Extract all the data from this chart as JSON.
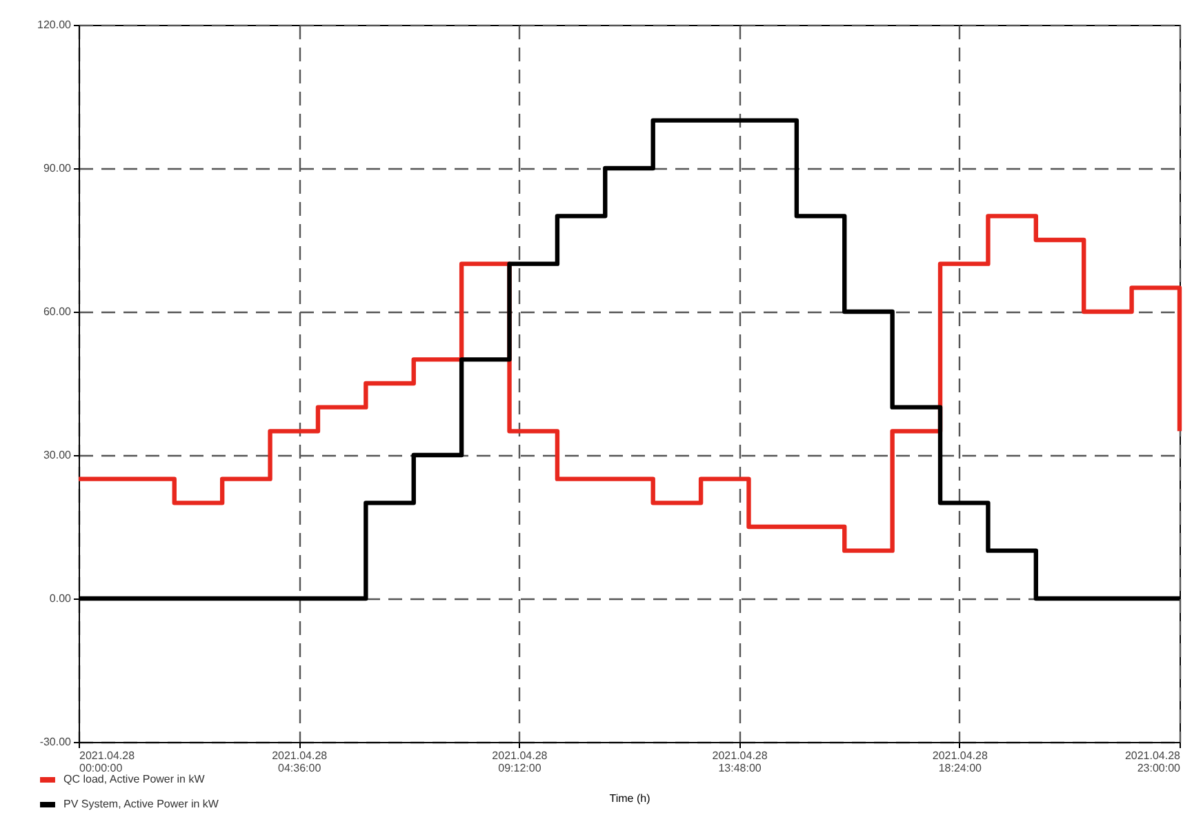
{
  "chart_data": {
    "type": "step",
    "xlabel": "Time (h)",
    "x": [
      "2021-04-28T00:00",
      "2021-04-28T01:00",
      "2021-04-28T02:00",
      "2021-04-28T03:00",
      "2021-04-28T04:00",
      "2021-04-28T05:00",
      "2021-04-28T06:00",
      "2021-04-28T07:00",
      "2021-04-28T08:00",
      "2021-04-28T09:00",
      "2021-04-28T10:00",
      "2021-04-28T11:00",
      "2021-04-28T12:00",
      "2021-04-28T13:00",
      "2021-04-28T14:00",
      "2021-04-28T15:00",
      "2021-04-28T16:00",
      "2021-04-28T17:00",
      "2021-04-28T18:00",
      "2021-04-28T19:00",
      "2021-04-28T20:00",
      "2021-04-28T21:00",
      "2021-04-28T22:00",
      "2021-04-28T23:00"
    ],
    "series": [
      {
        "name": "QC load, Active Power in kW",
        "color": "#e8281e",
        "values": [
          25,
          25,
          20,
          25,
          35,
          40,
          45,
          50,
          70,
          35,
          25,
          25,
          20,
          25,
          15,
          15,
          10,
          35,
          70,
          80,
          75,
          60,
          65,
          35
        ]
      },
      {
        "name": "PV System, Active Power in kW",
        "color": "#000000",
        "values": [
          0,
          0,
          0,
          0,
          0,
          0,
          20,
          30,
          50,
          70,
          80,
          90,
          100,
          100,
          100,
          80,
          60,
          40,
          20,
          10,
          0,
          0,
          0,
          0
        ]
      }
    ],
    "xlim": [
      "2021-04-28T00:00",
      "2021-04-28T23:00"
    ],
    "xticks": [
      {
        "value": "2021-04-28T00:00",
        "label": "2021.04.28 00:00:00"
      },
      {
        "value": "2021-04-28T04:36",
        "label": "2021.04.28 04:36:00"
      },
      {
        "value": "2021-04-28T09:12",
        "label": "2021.04.28 09:12:00"
      },
      {
        "value": "2021-04-28T13:48",
        "label": "2021.04.28 13:48:00"
      },
      {
        "value": "2021-04-28T18:24",
        "label": "2021.04.28 18:24:00"
      },
      {
        "value": "2021-04-28T23:00",
        "label": "2021.04.28 23:00:00"
      }
    ],
    "ylim": [
      -30,
      120
    ],
    "yticks": [
      {
        "value": -30,
        "label": "-30.00"
      },
      {
        "value": 0,
        "label": "0.00"
      },
      {
        "value": 30,
        "label": "30.00"
      },
      {
        "value": 60,
        "label": "60.00"
      },
      {
        "value": 90,
        "label": "90.00"
      },
      {
        "value": 120,
        "label": "120.00"
      }
    ],
    "grid": true,
    "legend": "bottom left",
    "line_style": "solid",
    "marker": "none"
  }
}
